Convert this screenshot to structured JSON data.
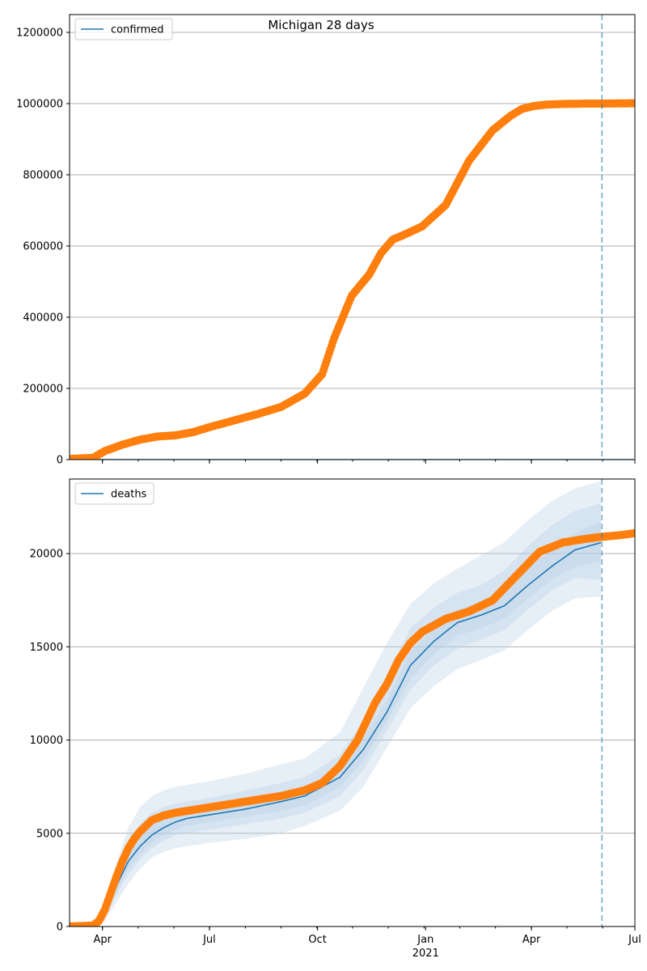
{
  "figure": {
    "title": "Michigan 28 days",
    "colors": {
      "model_line": "#1f77b4",
      "observed": "#ff7f0e",
      "band": "#b7cde4",
      "grid": "#b0b0b0",
      "forecast_line": "#1f77b4"
    }
  },
  "chart_data": [
    {
      "type": "line",
      "name": "confirmed",
      "legend": [
        "confirmed"
      ],
      "legend_position": "top-left",
      "ylim": [
        0,
        1250000
      ],
      "yticks": [
        0,
        200000,
        400000,
        600000,
        800000,
        1000000,
        1200000
      ],
      "ytick_labels": [
        "0",
        "200000",
        "400000",
        "600000",
        "800000",
        "1000000",
        "1200000"
      ],
      "xlim_days": [
        0,
        481
      ],
      "forecast_start_day": 453,
      "grid": "horizontal",
      "model": {
        "x_days": [
          0,
          481
        ],
        "values": [
          0,
          0
        ]
      },
      "observed": {
        "x_days": [
          0,
          20,
          30,
          45,
          60,
          75,
          90,
          105,
          120,
          140,
          160,
          180,
          200,
          215,
          225,
          240,
          255,
          265,
          275,
          285,
          300,
          320,
          340,
          360,
          375,
          385,
          395,
          405,
          420,
          440,
          455,
          481
        ],
        "values": [
          2000,
          5000,
          24000,
          42000,
          56000,
          65000,
          68000,
          77000,
          92000,
          110000,
          128000,
          148000,
          185000,
          240000,
          340000,
          460000,
          520000,
          580000,
          618000,
          632000,
          655000,
          715000,
          840000,
          925000,
          965000,
          985000,
          993000,
          997000,
          999000,
          1000000,
          1000000,
          1001000
        ]
      }
    },
    {
      "type": "line",
      "name": "deaths",
      "legend": [
        "deaths"
      ],
      "legend_position": "top-left",
      "ylim": [
        0,
        24000
      ],
      "yticks": [
        0,
        5000,
        10000,
        15000,
        20000
      ],
      "ytick_labels": [
        "0",
        "5000",
        "10000",
        "15000",
        "20000"
      ],
      "xlim_days": [
        0,
        481
      ],
      "xticks_days": [
        28,
        119,
        211,
        303,
        393,
        484
      ],
      "xtick_labels": [
        "Apr",
        "Jul",
        "Oct",
        "Jan",
        "Apr",
        "Jul"
      ],
      "xtick_sublabel": "2021",
      "forecast_start_day": 453,
      "grid": "horizontal",
      "model": {
        "x_days": [
          0,
          20,
          30,
          40,
          50,
          60,
          70,
          80,
          90,
          100,
          120,
          150,
          180,
          200,
          230,
          250,
          270,
          290,
          310,
          330,
          350,
          370,
          390,
          410,
          430,
          453
        ],
        "values": [
          0,
          50,
          600,
          2200,
          3500,
          4300,
          4900,
          5300,
          5600,
          5800,
          6000,
          6300,
          6700,
          7000,
          8000,
          9500,
          11500,
          14000,
          15300,
          16300,
          16700,
          17200,
          18300,
          19300,
          20200,
          20600
        ]
      },
      "bands": [
        {
          "x_days": [
            0,
            20,
            30,
            40,
            50,
            60,
            70,
            80,
            90,
            100,
            120,
            150,
            180,
            200,
            230,
            250,
            270,
            290,
            310,
            330,
            350,
            370,
            390,
            410,
            430,
            453
          ],
          "lower": [
            0,
            0,
            300,
            1300,
            2300,
            3100,
            3700,
            4000,
            4200,
            4300,
            4500,
            4700,
            5000,
            5400,
            6200,
            7500,
            9600,
            11700,
            12900,
            13800,
            14300,
            14800,
            15900,
            16900,
            17600,
            17700
          ],
          "upper": [
            0,
            150,
            1100,
            3400,
            5300,
            6400,
            7000,
            7300,
            7500,
            7600,
            7800,
            8200,
            8700,
            9000,
            10400,
            12800,
            15200,
            17300,
            18400,
            19200,
            19900,
            20600,
            21800,
            22800,
            23500,
            23900
          ]
        },
        {
          "x_days": [
            0,
            20,
            30,
            40,
            50,
            60,
            70,
            80,
            90,
            100,
            120,
            150,
            180,
            200,
            230,
            250,
            270,
            290,
            310,
            330,
            350,
            370,
            390,
            410,
            430,
            453
          ],
          "lower": [
            0,
            20,
            400,
            1700,
            2800,
            3600,
            4200,
            4600,
            4900,
            5000,
            5200,
            5500,
            5800,
            6100,
            7000,
            8400,
            10500,
            12700,
            14000,
            14900,
            15400,
            15900,
            17000,
            18000,
            18700,
            18600
          ],
          "upper": [
            0,
            100,
            900,
            2900,
            4500,
            5500,
            6100,
            6400,
            6600,
            6700,
            6900,
            7300,
            7700,
            8000,
            9200,
            11000,
            13400,
            16000,
            17100,
            17900,
            18300,
            19100,
            20400,
            21500,
            22300,
            22700
          ]
        },
        {
          "x_days": [
            0,
            20,
            30,
            40,
            50,
            60,
            70,
            80,
            90,
            100,
            120,
            150,
            180,
            200,
            230,
            250,
            270,
            290,
            310,
            330,
            350,
            370,
            390,
            410,
            430,
            453
          ],
          "lower": [
            0,
            40,
            500,
            1900,
            3100,
            3900,
            4500,
            4900,
            5200,
            5400,
            5600,
            5900,
            6200,
            6500,
            7500,
            8900,
            11000,
            13300,
            14600,
            15600,
            16000,
            16500,
            17600,
            18600,
            19300,
            19600
          ],
          "upper": [
            0,
            70,
            750,
            2600,
            4000,
            4900,
            5500,
            5900,
            6100,
            6300,
            6500,
            6800,
            7200,
            7500,
            8500,
            10100,
            12100,
            14700,
            16000,
            17000,
            17400,
            18000,
            19200,
            20200,
            21100,
            21700
          ]
        }
      ],
      "observed": {
        "x_days": [
          0,
          20,
          25,
          30,
          35,
          40,
          45,
          50,
          55,
          60,
          65,
          70,
          80,
          90,
          100,
          120,
          150,
          180,
          200,
          215,
          230,
          245,
          260,
          270,
          280,
          290,
          300,
          320,
          340,
          360,
          380,
          400,
          420,
          440,
          453,
          470,
          481
        ],
        "values": [
          0,
          50,
          300,
          900,
          1800,
          2700,
          3500,
          4200,
          4700,
          5100,
          5400,
          5700,
          5950,
          6100,
          6200,
          6400,
          6700,
          7000,
          7300,
          7700,
          8600,
          10000,
          12000,
          13000,
          14300,
          15200,
          15800,
          16500,
          16900,
          17500,
          18800,
          20100,
          20600,
          20800,
          20900,
          21000,
          21100
        ]
      }
    }
  ]
}
